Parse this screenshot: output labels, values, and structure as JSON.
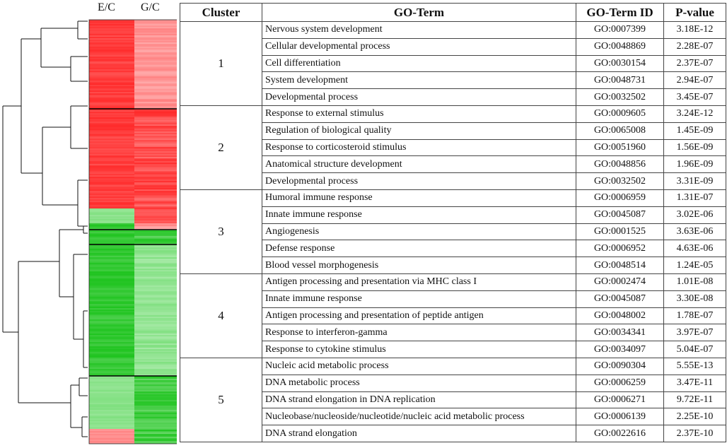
{
  "heatmap": {
    "columns": [
      "E/C",
      "G/C"
    ],
    "colors": {
      "up": "#ff2a2a",
      "up_light": "#ff8080",
      "down": "#1fc41f",
      "down_light": "#7fe07f"
    },
    "blocks": [
      {
        "rows_from": 0.0,
        "rows_to": 0.21,
        "E": "up",
        "G": "up_light"
      },
      {
        "rows_from": 0.21,
        "rows_to": 0.445,
        "E": "up",
        "G": "up"
      },
      {
        "rows_from": 0.445,
        "rows_to": 0.48,
        "E": "down_light",
        "G": "up"
      },
      {
        "rows_from": 0.48,
        "rows_to": 0.495,
        "E": "down",
        "G": "up_light"
      },
      {
        "rows_from": 0.495,
        "rows_to": 0.53,
        "E": "down",
        "G": "down"
      },
      {
        "rows_from": 0.53,
        "rows_to": 0.84,
        "E": "down",
        "G": "down_light"
      },
      {
        "rows_from": 0.84,
        "rows_to": 0.965,
        "E": "down_light",
        "G": "down"
      },
      {
        "rows_from": 0.965,
        "rows_to": 1.0,
        "E": "up_light",
        "G": "down"
      }
    ],
    "cluster_boundaries": [
      0.21,
      0.495,
      0.53,
      0.84
    ]
  },
  "table": {
    "headers": {
      "cluster": "Cluster",
      "term": "GO-Term",
      "id": "GO-Term ID",
      "p": "P-value"
    },
    "clusters": [
      {
        "label": "1",
        "rows": [
          {
            "term": "Nervous system development",
            "id": "GO:0007399",
            "p": "3.18E-12"
          },
          {
            "term": "Cellular developmental process",
            "id": "GO:0048869",
            "p": "2.28E-07"
          },
          {
            "term": "Cell differentiation",
            "id": "GO:0030154",
            "p": "2.37E-07"
          },
          {
            "term": "System development",
            "id": "GO:0048731",
            "p": "2.94E-07"
          },
          {
            "term": "Developmental process",
            "id": "GO:0032502",
            "p": "3.45E-07"
          }
        ]
      },
      {
        "label": "2",
        "rows": [
          {
            "term": "Response to external stimulus",
            "id": "GO:0009605",
            "p": "3.24E-12"
          },
          {
            "term": "Regulation of biological quality",
            "id": "GO:0065008",
            "p": "1.45E-09"
          },
          {
            "term": "Response to corticosteroid stimulus",
            "id": "GO:0051960",
            "p": "1.56E-09"
          },
          {
            "term": "Anatomical structure development",
            "id": "GO:0048856",
            "p": "1.96E-09"
          },
          {
            "term": "Developmental process",
            "id": "GO:0032502",
            "p": "3.31E-09"
          }
        ]
      },
      {
        "label": "3",
        "rows": [
          {
            "term": "Humoral immune response",
            "id": "GO:0006959",
            "p": "1.31E-07"
          },
          {
            "term": "Innate immune response",
            "id": "GO:0045087",
            "p": "3.02E-06"
          },
          {
            "term": "Angiogenesis",
            "id": "GO:0001525",
            "p": "3.63E-06"
          },
          {
            "term": "Defense response",
            "id": "GO:0006952",
            "p": "4.63E-06"
          },
          {
            "term": "Blood vessel morphogenesis",
            "id": "GO:0048514",
            "p": "1.24E-05"
          }
        ]
      },
      {
        "label": "4",
        "rows": [
          {
            "term": "Antigen processing and presentation via MHC class I",
            "id": "GO:0002474",
            "p": "1.01E-08"
          },
          {
            "term": "Innate immune response",
            "id": "GO:0045087",
            "p": "3.30E-08"
          },
          {
            "term": "Antigen processing and presentation of peptide antigen",
            "id": "GO:0048002",
            "p": "1.78E-07"
          },
          {
            "term": "Response to interferon-gamma",
            "id": "GO:0034341",
            "p": "3.97E-07"
          },
          {
            "term": "Response to cytokine stimulus",
            "id": "GO:0034097",
            "p": "5.04E-07"
          }
        ]
      },
      {
        "label": "5",
        "rows": [
          {
            "term": "Nucleic acid metabolic process",
            "id": "GO:0090304",
            "p": "5.55E-13"
          },
          {
            "term": "DNA metabolic process",
            "id": "GO:0006259",
            "p": "3.47E-11"
          },
          {
            "term": "DNA strand elongation in DNA replication",
            "id": "GO:0006271",
            "p": "9.72E-11"
          },
          {
            "term": "Nucleobase/nucleoside/nucleotide/nucleic acid metabolic process",
            "id": "GO:0006139",
            "p": "2.25E-10"
          },
          {
            "term": "DNA strand elongation",
            "id": "GO:0022616",
            "p": "2.37E-10"
          }
        ]
      }
    ]
  },
  "chart_data": {
    "type": "heatmap",
    "columns": [
      "E/C",
      "G/C"
    ],
    "row_groups": [
      {
        "cluster": "1",
        "E/C": "up",
        "G/C": "up"
      },
      {
        "cluster": "2",
        "E/C": "up",
        "G/C": "up"
      },
      {
        "cluster": "3",
        "E/C": "down",
        "G/C": "up/down"
      },
      {
        "cluster": "4",
        "E/C": "down",
        "G/C": "down"
      },
      {
        "cluster": "5",
        "E/C": "down",
        "G/C": "down"
      }
    ],
    "table_columns": [
      "Cluster",
      "GO-Term",
      "GO-Term ID",
      "P-value"
    ]
  }
}
